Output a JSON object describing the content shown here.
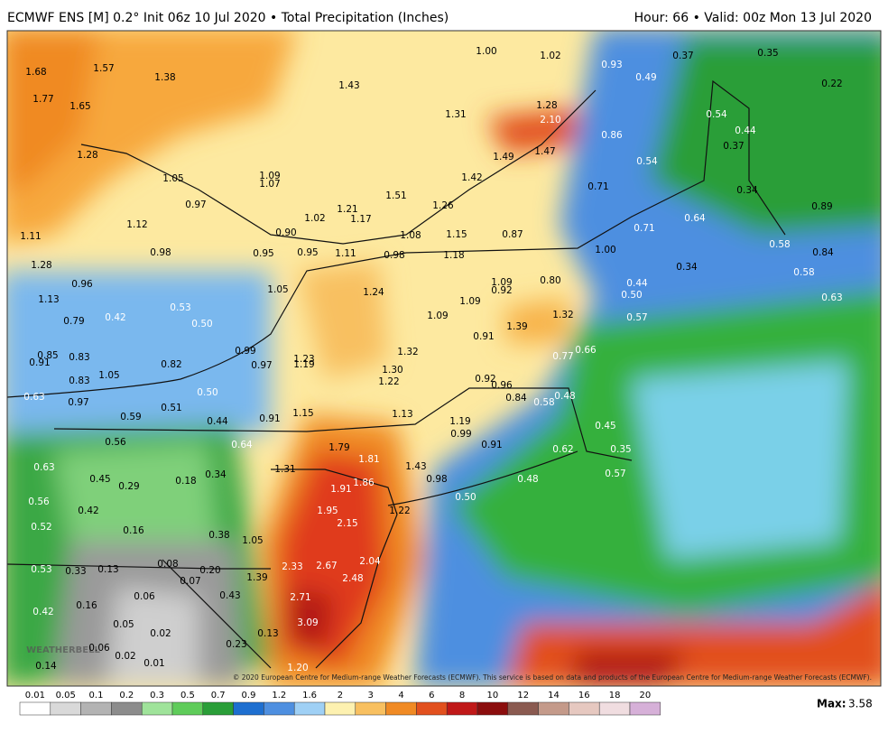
{
  "header": {
    "left": "ECMWF ENS [M] 0.2° Init 06z 10 Jul 2020 • Total Precipitation (Inches)",
    "right": "Hour: 66 • Valid: 00z Mon 13 Jul 2020"
  },
  "map": {
    "labels": [
      "1.68",
      "1.57",
      "1.38",
      "1.77",
      "1.65",
      "1.43",
      "1.00",
      "1.02",
      "0.93",
      "0.37",
      "0.35",
      "0.49",
      "0.22",
      "1.31",
      "1.28",
      "2.10",
      "0.54",
      "0.44",
      "0.37",
      "0.86",
      "1.28",
      "1.49",
      "1.47",
      "1.05",
      "1.09",
      "1.07",
      "1.42",
      "0.54",
      "0.71",
      "0.34",
      "0.97",
      "1.51",
      "1.26",
      "1.21",
      "1.02",
      "1.17",
      "0.89",
      "0.64",
      "1.12",
      "0.90",
      "1.08",
      "1.15",
      "0.87",
      "0.71",
      "1.11",
      "0.98",
      "0.95",
      "0.95",
      "1.11",
      "0.98",
      "1.18",
      "1.00",
      "0.58",
      "0.84",
      "1.28",
      "0.34",
      "0.58",
      "0.96",
      "1.05",
      "1.24",
      "1.09",
      "0.92",
      "0.80",
      "0.44",
      "0.50",
      "0.63",
      "1.13",
      "1.09",
      "0.79",
      "0.42",
      "0.53",
      "0.50",
      "1.09",
      "1.39",
      "1.32",
      "0.57",
      "0.91",
      "0.85",
      "0.91",
      "0.99",
      "1.23",
      "1.32",
      "0.66",
      "0.77",
      "0.83",
      "0.82",
      "0.97",
      "1.19",
      "1.30",
      "1.05",
      "0.83",
      "1.22",
      "0.92",
      "0.96",
      "0.63",
      "0.50",
      "0.84",
      "0.58",
      "0.48",
      "0.97",
      "0.51",
      "1.15",
      "1.13",
      "0.59",
      "0.44",
      "0.91",
      "1.19",
      "0.45",
      "0.99",
      "0.56",
      "0.64",
      "1.79",
      "0.91",
      "0.62",
      "0.35",
      "1.81",
      "0.63",
      "1.31",
      "1.43",
      "0.57",
      "0.45",
      "0.18",
      "0.34",
      "0.98",
      "0.48",
      "0.29",
      "1.91",
      "1.86",
      "0.56",
      "0.42",
      "0.50",
      "1.95",
      "1.22",
      "2.15",
      "0.52",
      "0.16",
      "0.38",
      "1.05",
      "0.53",
      "0.33",
      "0.13",
      "0.08",
      "0.20",
      "2.33",
      "2.67",
      "2.04",
      "1.39",
      "0.07",
      "2.48",
      "0.06",
      "0.16",
      "0.43",
      "2.71",
      "0.42",
      "0.05",
      "3.09",
      "0.02",
      "0.13",
      "0.06",
      "0.02",
      "0.23",
      "0.01",
      "0.14",
      "1.20"
    ],
    "watermark": "WEATHERBELL",
    "copyright": "© 2020 European Centre for Medium-range Weather Forecasts (ECMWF). This service is based on data and products of the European Centre for Medium-range Weather Forecasts (ECMWF)."
  },
  "legend": {
    "ticks": [
      "0.01",
      "0.05",
      "0.1",
      "0.2",
      "0.3",
      "0.5",
      "0.7",
      "0.9",
      "1.2",
      "1.6",
      "2",
      "3",
      "4",
      "6",
      "8",
      "10",
      "12",
      "14",
      "16",
      "18",
      "20"
    ],
    "max_label": "Max:",
    "max_value": "3.58"
  }
}
